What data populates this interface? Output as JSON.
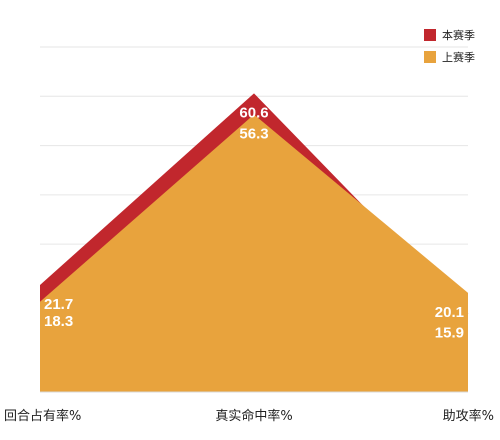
{
  "chart_data": {
    "type": "area",
    "categories": [
      "回合占有率%",
      "真实命中率%",
      "助攻率%"
    ],
    "series": [
      {
        "name": "本赛季",
        "values": [
          21.7,
          60.6,
          15.9
        ],
        "color": "#c1272d"
      },
      {
        "name": "上赛季",
        "values": [
          18.3,
          56.3,
          20.1
        ],
        "color": "#e8a33d"
      }
    ],
    "ylim": [
      0,
      70
    ],
    "grid": true,
    "legend_position": "top-right",
    "title": "",
    "xlabel": "",
    "ylabel": ""
  }
}
